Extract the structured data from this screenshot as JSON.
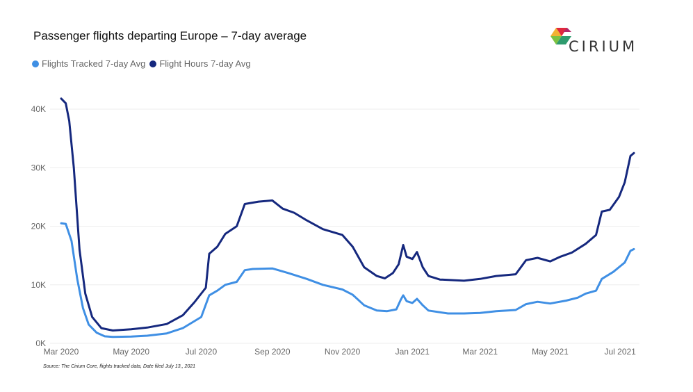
{
  "title": "Passenger flights departing Europe – 7-day average",
  "source": "Source: The Cirium Core, flights tracked data, Date filed July 13,, 2021",
  "logo": {
    "text": "CIRIUM"
  },
  "colors": {
    "flights": "#3f8fe4",
    "hours": "#15287e",
    "grid": "#eeeeee"
  },
  "chart_data": {
    "type": "line",
    "legend_position": "top-left",
    "grid": true,
    "y_ticks": [
      "0K",
      "10K",
      "20K",
      "30K",
      "40K"
    ],
    "x_ticks": [
      "Mar 2020",
      "May 2020",
      "Jul 2020",
      "Sep 2020",
      "Nov 2020",
      "Jan 2021",
      "Mar 2021",
      "May 2021",
      "Jul 2021"
    ],
    "xlim": [
      "2020-03-01",
      "2021-07-13"
    ],
    "ylim": [
      0,
      42000
    ],
    "series": [
      {
        "name": "Flights Tracked 7-day Avg",
        "color": "#3f8fe4",
        "points": [
          [
            "2020-03-01",
            20500
          ],
          [
            "2020-03-05",
            20400
          ],
          [
            "2020-03-10",
            17500
          ],
          [
            "2020-03-15",
            11000
          ],
          [
            "2020-03-20",
            6000
          ],
          [
            "2020-03-25",
            3200
          ],
          [
            "2020-04-01",
            1800
          ],
          [
            "2020-04-08",
            1200
          ],
          [
            "2020-04-15",
            1100
          ],
          [
            "2020-05-01",
            1150
          ],
          [
            "2020-05-15",
            1300
          ],
          [
            "2020-06-01",
            1700
          ],
          [
            "2020-06-15",
            2600
          ],
          [
            "2020-07-01",
            4500
          ],
          [
            "2020-07-08",
            8200
          ],
          [
            "2020-07-15",
            9000
          ],
          [
            "2020-07-22",
            10000
          ],
          [
            "2020-08-01",
            10500
          ],
          [
            "2020-08-08",
            12500
          ],
          [
            "2020-08-15",
            12700
          ],
          [
            "2020-09-01",
            12800
          ],
          [
            "2020-09-15",
            12000
          ],
          [
            "2020-10-01",
            11000
          ],
          [
            "2020-10-15",
            10000
          ],
          [
            "2020-11-01",
            9200
          ],
          [
            "2020-11-10",
            8300
          ],
          [
            "2020-11-20",
            6500
          ],
          [
            "2020-12-01",
            5600
          ],
          [
            "2020-12-10",
            5500
          ],
          [
            "2020-12-18",
            5800
          ],
          [
            "2020-12-22",
            7500
          ],
          [
            "2020-12-24",
            8200
          ],
          [
            "2020-12-27",
            7200
          ],
          [
            "2021-01-01",
            6900
          ],
          [
            "2021-01-05",
            7600
          ],
          [
            "2021-01-10",
            6500
          ],
          [
            "2021-01-15",
            5600
          ],
          [
            "2021-02-01",
            5100
          ],
          [
            "2021-02-15",
            5100
          ],
          [
            "2021-03-01",
            5200
          ],
          [
            "2021-03-15",
            5500
          ],
          [
            "2021-04-01",
            5700
          ],
          [
            "2021-04-10",
            6700
          ],
          [
            "2021-04-20",
            7100
          ],
          [
            "2021-05-01",
            6800
          ],
          [
            "2021-05-15",
            7300
          ],
          [
            "2021-05-25",
            7800
          ],
          [
            "2021-06-01",
            8500
          ],
          [
            "2021-06-10",
            9000
          ],
          [
            "2021-06-15",
            11000
          ],
          [
            "2021-06-25",
            12200
          ],
          [
            "2021-07-05",
            13800
          ],
          [
            "2021-07-10",
            15800
          ],
          [
            "2021-07-13",
            16100
          ]
        ]
      },
      {
        "name": "Flight Hours 7-day Avg",
        "color": "#15287e",
        "points": [
          [
            "2020-03-01",
            41800
          ],
          [
            "2020-03-05",
            41000
          ],
          [
            "2020-03-08",
            38000
          ],
          [
            "2020-03-12",
            30000
          ],
          [
            "2020-03-17",
            16000
          ],
          [
            "2020-03-22",
            8500
          ],
          [
            "2020-03-28",
            4500
          ],
          [
            "2020-04-05",
            2600
          ],
          [
            "2020-04-15",
            2200
          ],
          [
            "2020-05-01",
            2400
          ],
          [
            "2020-05-15",
            2700
          ],
          [
            "2020-06-01",
            3300
          ],
          [
            "2020-06-15",
            4800
          ],
          [
            "2020-06-25",
            7000
          ],
          [
            "2020-07-05",
            9500
          ],
          [
            "2020-07-08",
            15300
          ],
          [
            "2020-07-15",
            16500
          ],
          [
            "2020-07-22",
            18700
          ],
          [
            "2020-08-01",
            20000
          ],
          [
            "2020-08-08",
            23800
          ],
          [
            "2020-08-20",
            24200
          ],
          [
            "2020-09-01",
            24400
          ],
          [
            "2020-09-10",
            23000
          ],
          [
            "2020-09-20",
            22300
          ],
          [
            "2020-10-01",
            21000
          ],
          [
            "2020-10-15",
            19500
          ],
          [
            "2020-11-01",
            18500
          ],
          [
            "2020-11-10",
            16500
          ],
          [
            "2020-11-20",
            13000
          ],
          [
            "2020-12-01",
            11500
          ],
          [
            "2020-12-08",
            11100
          ],
          [
            "2020-12-15",
            12000
          ],
          [
            "2020-12-20",
            13500
          ],
          [
            "2020-12-24",
            16800
          ],
          [
            "2020-12-27",
            14800
          ],
          [
            "2021-01-01",
            14400
          ],
          [
            "2021-01-05",
            15600
          ],
          [
            "2021-01-10",
            13000
          ],
          [
            "2021-01-15",
            11500
          ],
          [
            "2021-01-25",
            10900
          ],
          [
            "2021-02-15",
            10700
          ],
          [
            "2021-03-01",
            11000
          ],
          [
            "2021-03-15",
            11500
          ],
          [
            "2021-04-01",
            11800
          ],
          [
            "2021-04-10",
            14200
          ],
          [
            "2021-04-20",
            14600
          ],
          [
            "2021-05-01",
            14000
          ],
          [
            "2021-05-10",
            14800
          ],
          [
            "2021-05-20",
            15500
          ],
          [
            "2021-06-01",
            17000
          ],
          [
            "2021-06-10",
            18500
          ],
          [
            "2021-06-15",
            22500
          ],
          [
            "2021-06-22",
            22800
          ],
          [
            "2021-06-30",
            25000
          ],
          [
            "2021-07-05",
            27500
          ],
          [
            "2021-07-10",
            32000
          ],
          [
            "2021-07-13",
            32500
          ]
        ]
      }
    ]
  }
}
